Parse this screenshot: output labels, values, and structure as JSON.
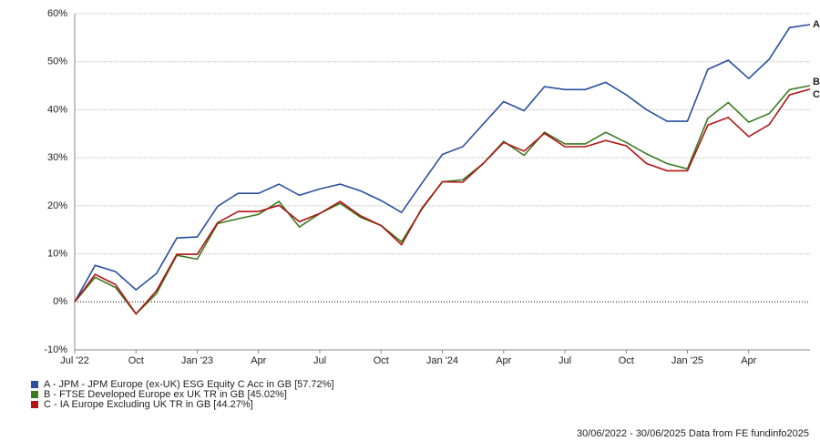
{
  "chart_data": {
    "type": "line",
    "categories": [
      "Jul '22",
      null,
      null,
      "Oct",
      null,
      null,
      "Jan '23",
      null,
      null,
      "Apr",
      null,
      null,
      "Jul",
      null,
      null,
      "Oct",
      null,
      null,
      "Jan '24",
      null,
      null,
      "Apr",
      null,
      null,
      "Jul",
      null,
      null,
      "Oct",
      null,
      null,
      "Jan '25",
      null,
      null,
      "Apr",
      null,
      null,
      null
    ],
    "ylim": [
      -10,
      60
    ],
    "yticks": [
      {
        "value": -10,
        "label": "-10%"
      },
      {
        "value": 0,
        "label": "0%"
      },
      {
        "value": 10,
        "label": "10%"
      },
      {
        "value": 20,
        "label": "20%"
      },
      {
        "value": 30,
        "label": "30%"
      },
      {
        "value": 40,
        "label": "40%"
      },
      {
        "value": 50,
        "label": "50%"
      },
      {
        "value": 60,
        "label": "60%"
      }
    ],
    "grid": true,
    "series": [
      {
        "name": "A - JPM - JPM Europe (ex-UK) ESG Equity C Acc in GB [57.72%]",
        "label": "A",
        "color": "#2a4f9e",
        "values": [
          0,
          7.6,
          6.3,
          2.5,
          5.9,
          13.3,
          13.5,
          19.9,
          22.6,
          22.6,
          24.5,
          22.2,
          23.5,
          24.5,
          23.1,
          21.1,
          18.6,
          24.7,
          30.7,
          32.3,
          37,
          41.7,
          39.8,
          44.8,
          44.2,
          44.2,
          45.7,
          43.1,
          40,
          37.6,
          37.6,
          48.4,
          50.3,
          46.5,
          50.5,
          57.1,
          57.72
        ]
      },
      {
        "name": "B - FTSE Developed Europe ex UK TR in GB [45.02%]",
        "label": "B",
        "color": "#3a7a1e",
        "values": [
          0,
          5.1,
          3,
          -2.5,
          1.7,
          9.7,
          8.9,
          16.3,
          17.3,
          18.2,
          20.9,
          15.6,
          18.4,
          20.5,
          17.6,
          15.9,
          12.5,
          19.3,
          25,
          25.4,
          28.8,
          33.4,
          30.5,
          35.3,
          32.9,
          32.9,
          35.3,
          33.2,
          30.8,
          28.8,
          27.7,
          38.2,
          41.5,
          37.4,
          39.2,
          44.2,
          45.02
        ]
      },
      {
        "name": "C - IA Europe Excluding UK TR in GB [44.27%]",
        "label": "C",
        "color": "#b01414",
        "values": [
          0,
          5.7,
          3.6,
          -2.5,
          2.3,
          9.9,
          9.9,
          16.5,
          18.8,
          18.8,
          20.1,
          16.7,
          18.4,
          20.9,
          17.9,
          15.9,
          11.9,
          19.5,
          25,
          24.9,
          28.8,
          33.2,
          31.4,
          35.1,
          32.3,
          32.3,
          33.6,
          32.5,
          28.8,
          27.3,
          27.3,
          36.8,
          38.4,
          34.4,
          36.9,
          43.1,
          44.27
        ]
      }
    ],
    "footer": "30/06/2022 - 30/06/2025 Data from FE fundinfo2025"
  }
}
